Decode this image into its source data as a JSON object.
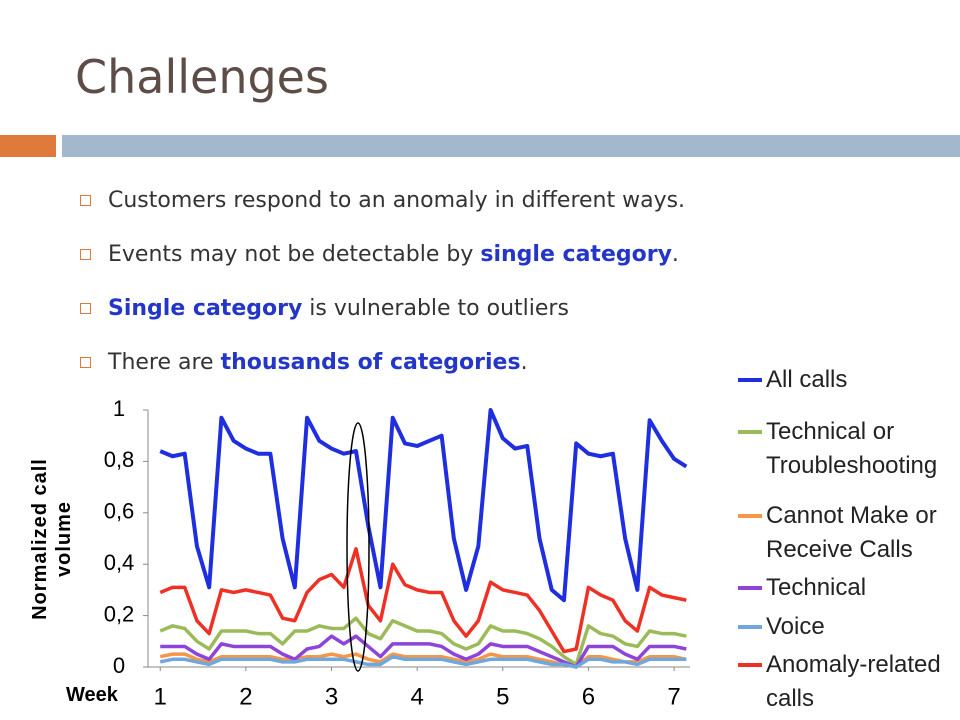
{
  "header": {
    "title": "Challenges"
  },
  "bullets": [
    {
      "parts": [
        {
          "text": "Customers respond to an anomaly in different ways."
        }
      ]
    },
    {
      "parts": [
        {
          "text": "Events may not be detectable by "
        },
        {
          "text": "single category",
          "emphasis": true
        },
        {
          "text": "."
        }
      ]
    },
    {
      "parts": [
        {
          "text": "Single category",
          "emphasis": true
        },
        {
          "text": " is vulnerable to outliers"
        }
      ]
    },
    {
      "parts": [
        {
          "text": "There are "
        },
        {
          "text": "thousands of categories",
          "emphasis": true
        },
        {
          "text": "."
        }
      ]
    }
  ],
  "chart_data": {
    "type": "line",
    "ylabel": "Normalized call volume",
    "xlabel": "Week",
    "x": [
      0,
      1,
      2,
      3,
      4,
      5,
      6,
      7,
      8,
      9,
      10,
      11,
      12,
      13,
      14,
      15,
      16,
      17,
      18,
      19,
      20,
      21,
      22,
      23,
      24,
      25,
      26,
      27,
      28,
      29,
      30,
      31,
      32,
      33,
      34,
      35,
      36,
      37,
      38,
      39,
      40,
      41,
      42,
      43
    ],
    "xlim": [
      -1,
      43.3
    ],
    "xticks": [
      {
        "value": 0,
        "label": "1"
      },
      {
        "value": 7,
        "label": "2"
      },
      {
        "value": 14,
        "label": "3"
      },
      {
        "value": 21,
        "label": "4"
      },
      {
        "value": 28,
        "label": "5"
      },
      {
        "value": 35,
        "label": "6"
      },
      {
        "value": 42,
        "label": "7"
      }
    ],
    "ylim": [
      0,
      1
    ],
    "yticks": [
      0,
      {
        "value": 0.2,
        "label": "0,2"
      },
      {
        "value": 0.4,
        "label": "0,4"
      },
      {
        "value": 0.6,
        "label": "0,6"
      },
      {
        "value": 0.8,
        "label": "0,8"
      },
      1
    ],
    "grid": false,
    "series": [
      {
        "name": "All calls",
        "color": "#1f2fe0",
        "values": [
          0.84,
          0.82,
          0.83,
          0.47,
          0.31,
          0.97,
          0.88,
          0.85,
          0.83,
          0.83,
          0.5,
          0.31,
          0.97,
          0.88,
          0.85,
          0.83,
          0.84,
          0.55,
          0.31,
          0.97,
          0.87,
          0.86,
          0.88,
          0.9,
          0.5,
          0.3,
          0.47,
          1.0,
          0.89,
          0.85,
          0.86,
          0.5,
          0.3,
          0.26,
          0.87,
          0.83,
          0.82,
          0.83,
          0.5,
          0.3,
          0.96,
          0.88,
          0.81,
          0.78
        ]
      },
      {
        "name": "Technical or Troubleshooting",
        "color": "#9bbb59",
        "values": [
          0.14,
          0.16,
          0.15,
          0.1,
          0.07,
          0.14,
          0.14,
          0.14,
          0.13,
          0.13,
          0.09,
          0.14,
          0.14,
          0.16,
          0.15,
          0.15,
          0.19,
          0.13,
          0.11,
          0.18,
          0.16,
          0.14,
          0.14,
          0.13,
          0.09,
          0.07,
          0.09,
          0.16,
          0.14,
          0.14,
          0.13,
          0.11,
          0.08,
          0.04,
          0.01,
          0.16,
          0.13,
          0.12,
          0.09,
          0.08,
          0.14,
          0.13,
          0.13,
          0.12
        ]
      },
      {
        "name": "Cannot Make or Receive Calls",
        "color": "#f79646",
        "values": [
          0.04,
          0.05,
          0.05,
          0.03,
          0.02,
          0.04,
          0.04,
          0.04,
          0.04,
          0.04,
          0.03,
          0.03,
          0.04,
          0.04,
          0.05,
          0.04,
          0.05,
          0.03,
          0.02,
          0.05,
          0.04,
          0.04,
          0.04,
          0.04,
          0.03,
          0.02,
          0.03,
          0.05,
          0.04,
          0.04,
          0.04,
          0.03,
          0.02,
          0.01,
          0.0,
          0.04,
          0.04,
          0.03,
          0.02,
          0.02,
          0.04,
          0.04,
          0.04,
          0.03
        ]
      },
      {
        "name": "Technical",
        "color": "#8e44d8",
        "values": [
          0.08,
          0.08,
          0.08,
          0.05,
          0.03,
          0.09,
          0.08,
          0.08,
          0.08,
          0.08,
          0.05,
          0.03,
          0.07,
          0.08,
          0.12,
          0.09,
          0.12,
          0.08,
          0.04,
          0.09,
          0.09,
          0.09,
          0.09,
          0.08,
          0.05,
          0.03,
          0.05,
          0.09,
          0.08,
          0.08,
          0.08,
          0.06,
          0.04,
          0.02,
          0.0,
          0.08,
          0.08,
          0.08,
          0.05,
          0.03,
          0.08,
          0.08,
          0.08,
          0.07
        ]
      },
      {
        "name": "Voice",
        "color": "#6fa8dc",
        "values": [
          0.02,
          0.03,
          0.03,
          0.02,
          0.01,
          0.03,
          0.03,
          0.03,
          0.03,
          0.03,
          0.02,
          0.02,
          0.03,
          0.03,
          0.03,
          0.03,
          0.02,
          0.01,
          0.01,
          0.04,
          0.03,
          0.03,
          0.03,
          0.03,
          0.02,
          0.01,
          0.02,
          0.03,
          0.03,
          0.03,
          0.03,
          0.02,
          0.01,
          0.01,
          0.0,
          0.03,
          0.03,
          0.02,
          0.02,
          0.01,
          0.03,
          0.03,
          0.03,
          0.03
        ]
      },
      {
        "name": "Anomaly-related calls",
        "color": "#ee3124",
        "values": [
          0.29,
          0.31,
          0.31,
          0.18,
          0.13,
          0.3,
          0.29,
          0.3,
          0.29,
          0.28,
          0.19,
          0.18,
          0.29,
          0.34,
          0.36,
          0.31,
          0.46,
          0.24,
          0.18,
          0.4,
          0.32,
          0.3,
          0.29,
          0.29,
          0.18,
          0.12,
          0.18,
          0.33,
          0.3,
          0.29,
          0.28,
          0.22,
          0.14,
          0.06,
          0.07,
          0.31,
          0.28,
          0.26,
          0.18,
          0.14,
          0.31,
          0.28,
          0.27,
          0.26
        ]
      }
    ]
  }
}
